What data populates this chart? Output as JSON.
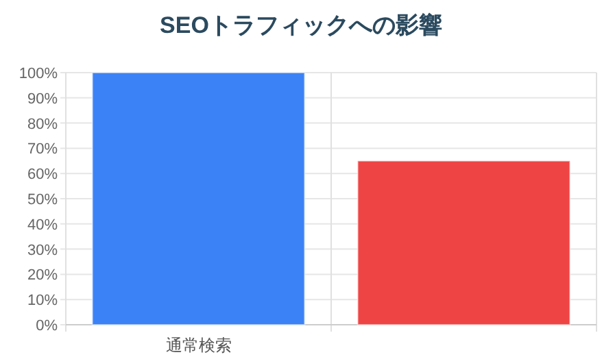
{
  "chart_data": {
    "type": "bar",
    "title": "SEOトラフィックへの影響",
    "categories": [
      "通常検索",
      null
    ],
    "values": [
      100,
      65
    ],
    "colors": [
      "#3b82f6",
      "#ef4444"
    ],
    "ylim": [
      0,
      100
    ],
    "yticks": [
      {
        "value": 0,
        "label": "0%"
      },
      {
        "value": 10,
        "label": "10%"
      },
      {
        "value": 20,
        "label": "20%"
      },
      {
        "value": 30,
        "label": "30%"
      },
      {
        "value": 40,
        "label": "40%"
      },
      {
        "value": 50,
        "label": "50%"
      },
      {
        "value": 60,
        "label": "60%"
      },
      {
        "value": 70,
        "label": "70%"
      },
      {
        "value": 80,
        "label": "80%"
      },
      {
        "value": 90,
        "label": "90%"
      },
      {
        "value": 100,
        "label": "100%"
      }
    ],
    "grid": true
  }
}
